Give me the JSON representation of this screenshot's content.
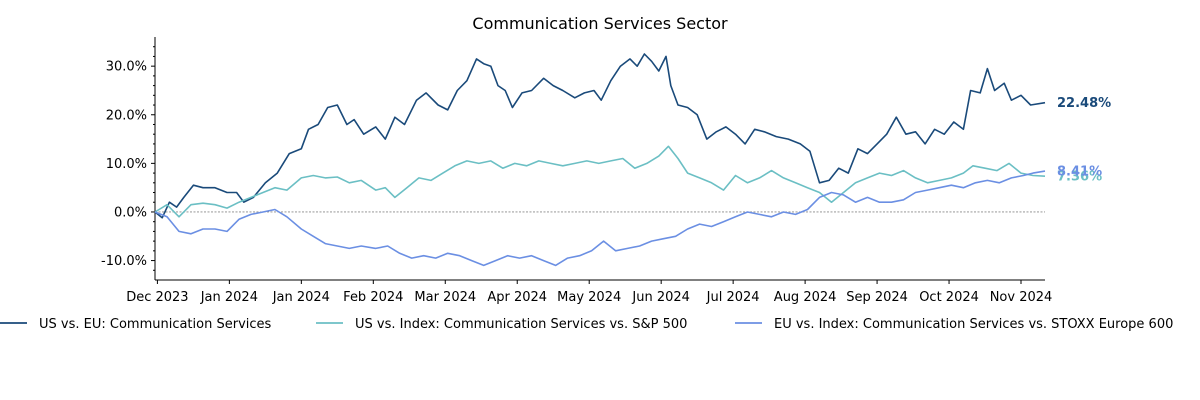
{
  "chart_data": {
    "type": "line",
    "title": "Communication Services Sector",
    "xlabel": "",
    "ylabel": "",
    "ylim": [
      -14,
      36
    ],
    "y_ticks": [
      -10,
      0,
      10,
      20,
      30
    ],
    "y_tick_format": "%",
    "x_range": [
      "2023-11-30",
      "2024-12-05"
    ],
    "x_ticks": [
      {
        "date": "2023-12-01",
        "label": "Dec 2023"
      },
      {
        "date": "2023-12-31",
        "label": "Jan 2024"
      },
      {
        "date": "2024-01-30",
        "label": "Jan 2024"
      },
      {
        "date": "2024-02-29",
        "label": "Feb 2024"
      },
      {
        "date": "2024-03-30",
        "label": "Mar 2024"
      },
      {
        "date": "2024-04-29",
        "label": "Apr 2024"
      },
      {
        "date": "2024-05-29",
        "label": "May 2024"
      },
      {
        "date": "2024-06-28",
        "label": "Jun 2024"
      },
      {
        "date": "2024-07-28",
        "label": "Jul 2024"
      },
      {
        "date": "2024-08-27",
        "label": "Aug 2024"
      },
      {
        "date": "2024-09-26",
        "label": "Sep 2024"
      },
      {
        "date": "2024-10-26",
        "label": "Oct 2024"
      },
      {
        "date": "2024-11-25",
        "label": "Nov 2024"
      }
    ],
    "zero_line": true,
    "legend_position": "bottom",
    "series": [
      {
        "name": "US vs. EU: Communication Services",
        "color": "#1a4a7a",
        "end_label": "22.48%",
        "points": [
          [
            "2023-11-30",
            0
          ],
          [
            "2023-12-03",
            -1.2
          ],
          [
            "2023-12-06",
            2
          ],
          [
            "2023-12-09",
            1
          ],
          [
            "2023-12-12",
            3
          ],
          [
            "2023-12-16",
            5.5
          ],
          [
            "2023-12-20",
            5
          ],
          [
            "2023-12-25",
            5
          ],
          [
            "2023-12-30",
            4
          ],
          [
            "2024-01-03",
            4
          ],
          [
            "2024-01-06",
            2
          ],
          [
            "2024-01-10",
            3
          ],
          [
            "2024-01-15",
            6
          ],
          [
            "2024-01-20",
            8
          ],
          [
            "2024-01-25",
            12
          ],
          [
            "2024-01-30",
            13
          ],
          [
            "2024-02-02",
            17
          ],
          [
            "2024-02-06",
            18
          ],
          [
            "2024-02-10",
            21.5
          ],
          [
            "2024-02-14",
            22
          ],
          [
            "2024-02-18",
            18
          ],
          [
            "2024-02-21",
            19
          ],
          [
            "2024-02-25",
            16
          ],
          [
            "2024-03-01",
            17.5
          ],
          [
            "2024-03-05",
            15
          ],
          [
            "2024-03-09",
            19.5
          ],
          [
            "2024-03-13",
            18
          ],
          [
            "2024-03-18",
            23
          ],
          [
            "2024-03-22",
            24.5
          ],
          [
            "2024-03-27",
            22
          ],
          [
            "2024-03-31",
            21
          ],
          [
            "2024-04-04",
            25
          ],
          [
            "2024-04-08",
            27
          ],
          [
            "2024-04-12",
            31.5
          ],
          [
            "2024-04-15",
            30.5
          ],
          [
            "2024-04-18",
            30
          ],
          [
            "2024-04-21",
            26
          ],
          [
            "2024-04-24",
            25
          ],
          [
            "2024-04-27",
            21.5
          ],
          [
            "2024-05-01",
            24.5
          ],
          [
            "2024-05-05",
            25
          ],
          [
            "2024-05-10",
            27.5
          ],
          [
            "2024-05-14",
            26
          ],
          [
            "2024-05-18",
            25
          ],
          [
            "2024-05-23",
            23.5
          ],
          [
            "2024-05-27",
            24.5
          ],
          [
            "2024-05-31",
            25
          ],
          [
            "2024-06-03",
            23
          ],
          [
            "2024-06-07",
            27
          ],
          [
            "2024-06-11",
            30
          ],
          [
            "2024-06-15",
            31.5
          ],
          [
            "2024-06-18",
            30
          ],
          [
            "2024-06-21",
            32.5
          ],
          [
            "2024-06-24",
            31
          ],
          [
            "2024-06-27",
            29
          ],
          [
            "2024-06-30",
            32
          ],
          [
            "2024-07-02",
            26
          ],
          [
            "2024-07-05",
            22
          ],
          [
            "2024-07-09",
            21.5
          ],
          [
            "2024-07-13",
            20
          ],
          [
            "2024-07-17",
            15
          ],
          [
            "2024-07-21",
            16.5
          ],
          [
            "2024-07-25",
            17.5
          ],
          [
            "2024-07-29",
            16
          ],
          [
            "2024-08-02",
            14
          ],
          [
            "2024-08-06",
            17
          ],
          [
            "2024-08-10",
            16.5
          ],
          [
            "2024-08-15",
            15.5
          ],
          [
            "2024-08-20",
            15
          ],
          [
            "2024-08-25",
            14
          ],
          [
            "2024-08-29",
            12.5
          ],
          [
            "2024-09-02",
            6
          ],
          [
            "2024-09-06",
            6.5
          ],
          [
            "2024-09-10",
            9
          ],
          [
            "2024-09-14",
            8
          ],
          [
            "2024-09-18",
            13
          ],
          [
            "2024-09-22",
            12
          ],
          [
            "2024-09-26",
            14
          ],
          [
            "2024-09-30",
            16
          ],
          [
            "2024-10-04",
            19.5
          ],
          [
            "2024-10-08",
            16
          ],
          [
            "2024-10-12",
            16.5
          ],
          [
            "2024-10-16",
            14
          ],
          [
            "2024-10-20",
            17
          ],
          [
            "2024-10-24",
            16
          ],
          [
            "2024-10-28",
            18.5
          ],
          [
            "2024-11-01",
            17
          ],
          [
            "2024-11-04",
            25
          ],
          [
            "2024-11-08",
            24.5
          ],
          [
            "2024-11-11",
            29.5
          ],
          [
            "2024-11-14",
            25
          ],
          [
            "2024-11-18",
            26.5
          ],
          [
            "2024-11-21",
            23
          ],
          [
            "2024-11-25",
            24
          ],
          [
            "2024-11-29",
            22
          ],
          [
            "2024-12-05",
            22.48
          ]
        ]
      },
      {
        "name": "US vs. Index: Communication Services vs. S&P 500",
        "color": "#6bbfc4",
        "end_label": "7.36%",
        "points": [
          [
            "2023-11-30",
            0
          ],
          [
            "2023-12-05",
            1.5
          ],
          [
            "2023-12-10",
            -1
          ],
          [
            "2023-12-15",
            1.5
          ],
          [
            "2023-12-20",
            1.8
          ],
          [
            "2023-12-25",
            1.5
          ],
          [
            "2023-12-30",
            0.8
          ],
          [
            "2024-01-04",
            2
          ],
          [
            "2024-01-09",
            3
          ],
          [
            "2024-01-14",
            4
          ],
          [
            "2024-01-19",
            5
          ],
          [
            "2024-01-24",
            4.5
          ],
          [
            "2024-01-30",
            7
          ],
          [
            "2024-02-04",
            7.5
          ],
          [
            "2024-02-09",
            7
          ],
          [
            "2024-02-14",
            7.2
          ],
          [
            "2024-02-19",
            6
          ],
          [
            "2024-02-24",
            6.5
          ],
          [
            "2024-03-01",
            4.5
          ],
          [
            "2024-03-05",
            5
          ],
          [
            "2024-03-09",
            3
          ],
          [
            "2024-03-14",
            5
          ],
          [
            "2024-03-19",
            7
          ],
          [
            "2024-03-24",
            6.5
          ],
          [
            "2024-03-29",
            8
          ],
          [
            "2024-04-03",
            9.5
          ],
          [
            "2024-04-08",
            10.5
          ],
          [
            "2024-04-13",
            10
          ],
          [
            "2024-04-18",
            10.5
          ],
          [
            "2024-04-23",
            9
          ],
          [
            "2024-04-28",
            10
          ],
          [
            "2024-05-03",
            9.5
          ],
          [
            "2024-05-08",
            10.5
          ],
          [
            "2024-05-13",
            10
          ],
          [
            "2024-05-18",
            9.5
          ],
          [
            "2024-05-23",
            10
          ],
          [
            "2024-05-28",
            10.5
          ],
          [
            "2024-06-02",
            10
          ],
          [
            "2024-06-07",
            10.5
          ],
          [
            "2024-06-12",
            11
          ],
          [
            "2024-06-17",
            9
          ],
          [
            "2024-06-22",
            10
          ],
          [
            "2024-06-27",
            11.5
          ],
          [
            "2024-07-01",
            13.5
          ],
          [
            "2024-07-05",
            11
          ],
          [
            "2024-07-09",
            8
          ],
          [
            "2024-07-14",
            7
          ],
          [
            "2024-07-19",
            6
          ],
          [
            "2024-07-24",
            4.5
          ],
          [
            "2024-07-29",
            7.5
          ],
          [
            "2024-08-03",
            6
          ],
          [
            "2024-08-08",
            7
          ],
          [
            "2024-08-13",
            8.5
          ],
          [
            "2024-08-18",
            7
          ],
          [
            "2024-08-23",
            6
          ],
          [
            "2024-08-28",
            5
          ],
          [
            "2024-09-02",
            4
          ],
          [
            "2024-09-07",
            2
          ],
          [
            "2024-09-12",
            4
          ],
          [
            "2024-09-17",
            6
          ],
          [
            "2024-09-22",
            7
          ],
          [
            "2024-09-27",
            8
          ],
          [
            "2024-10-02",
            7.5
          ],
          [
            "2024-10-07",
            8.5
          ],
          [
            "2024-10-12",
            7
          ],
          [
            "2024-10-17",
            6
          ],
          [
            "2024-10-22",
            6.5
          ],
          [
            "2024-10-27",
            7
          ],
          [
            "2024-11-01",
            8
          ],
          [
            "2024-11-05",
            9.5
          ],
          [
            "2024-11-10",
            9
          ],
          [
            "2024-11-15",
            8.5
          ],
          [
            "2024-11-20",
            10
          ],
          [
            "2024-11-25",
            8
          ],
          [
            "2024-11-30",
            7.5
          ],
          [
            "2024-12-05",
            7.36
          ]
        ]
      },
      {
        "name": "EU vs. Index: Communication Services vs. STOXX Europe 600",
        "color": "#6b8fe3",
        "end_label": "8.41%",
        "points": [
          [
            "2023-11-30",
            0
          ],
          [
            "2023-12-05",
            -1
          ],
          [
            "2023-12-10",
            -4
          ],
          [
            "2023-12-15",
            -4.5
          ],
          [
            "2023-12-20",
            -3.5
          ],
          [
            "2023-12-25",
            -3.5
          ],
          [
            "2023-12-30",
            -4
          ],
          [
            "2024-01-04",
            -1.5
          ],
          [
            "2024-01-09",
            -0.5
          ],
          [
            "2024-01-14",
            0
          ],
          [
            "2024-01-19",
            0.5
          ],
          [
            "2024-01-24",
            -1
          ],
          [
            "2024-01-30",
            -3.5
          ],
          [
            "2024-02-04",
            -5
          ],
          [
            "2024-02-09",
            -6.5
          ],
          [
            "2024-02-14",
            -7
          ],
          [
            "2024-02-19",
            -7.5
          ],
          [
            "2024-02-24",
            -7
          ],
          [
            "2024-03-01",
            -7.5
          ],
          [
            "2024-03-06",
            -7
          ],
          [
            "2024-03-11",
            -8.5
          ],
          [
            "2024-03-16",
            -9.5
          ],
          [
            "2024-03-21",
            -9
          ],
          [
            "2024-03-26",
            -9.5
          ],
          [
            "2024-03-31",
            -8.5
          ],
          [
            "2024-04-05",
            -9
          ],
          [
            "2024-04-10",
            -10
          ],
          [
            "2024-04-15",
            -11
          ],
          [
            "2024-04-20",
            -10
          ],
          [
            "2024-04-25",
            -9
          ],
          [
            "2024-04-30",
            -9.5
          ],
          [
            "2024-05-05",
            -9
          ],
          [
            "2024-05-10",
            -10
          ],
          [
            "2024-05-15",
            -11
          ],
          [
            "2024-05-20",
            -9.5
          ],
          [
            "2024-05-25",
            -9
          ],
          [
            "2024-05-30",
            -8
          ],
          [
            "2024-06-04",
            -6
          ],
          [
            "2024-06-09",
            -8
          ],
          [
            "2024-06-14",
            -7.5
          ],
          [
            "2024-06-19",
            -7
          ],
          [
            "2024-06-24",
            -6
          ],
          [
            "2024-06-29",
            -5.5
          ],
          [
            "2024-07-04",
            -5
          ],
          [
            "2024-07-09",
            -3.5
          ],
          [
            "2024-07-14",
            -2.5
          ],
          [
            "2024-07-19",
            -3
          ],
          [
            "2024-07-24",
            -2
          ],
          [
            "2024-07-29",
            -1
          ],
          [
            "2024-08-03",
            0
          ],
          [
            "2024-08-08",
            -0.5
          ],
          [
            "2024-08-13",
            -1
          ],
          [
            "2024-08-18",
            0
          ],
          [
            "2024-08-23",
            -0.5
          ],
          [
            "2024-08-28",
            0.5
          ],
          [
            "2024-09-02",
            3
          ],
          [
            "2024-09-07",
            4
          ],
          [
            "2024-09-12",
            3.5
          ],
          [
            "2024-09-17",
            2
          ],
          [
            "2024-09-22",
            3
          ],
          [
            "2024-09-27",
            2
          ],
          [
            "2024-10-02",
            2
          ],
          [
            "2024-10-07",
            2.5
          ],
          [
            "2024-10-12",
            4
          ],
          [
            "2024-10-17",
            4.5
          ],
          [
            "2024-10-22",
            5
          ],
          [
            "2024-10-27",
            5.5
          ],
          [
            "2024-11-01",
            5
          ],
          [
            "2024-11-06",
            6
          ],
          [
            "2024-11-11",
            6.5
          ],
          [
            "2024-11-16",
            6
          ],
          [
            "2024-11-21",
            7
          ],
          [
            "2024-11-26",
            7.5
          ],
          [
            "2024-11-30",
            8
          ],
          [
            "2024-12-05",
            8.41
          ]
        ]
      }
    ]
  }
}
